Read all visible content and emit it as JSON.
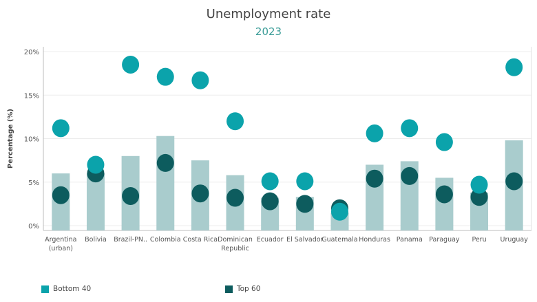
{
  "colors": {
    "bottom40": "#0ba3ab",
    "top60": "#0d5c5e",
    "bar": "#a9cccd",
    "axis": "#bcbcbc",
    "grid": "#ececec",
    "text": "#555555"
  },
  "chart_data": {
    "type": "bar",
    "title": "Unemployment rate",
    "subtitle": "2023",
    "ylabel": "Percentage (%)",
    "xlabel": "",
    "ylim": [
      0,
      20
    ],
    "yticks": [
      "0%",
      "5%",
      "10%",
      "15%",
      "20%"
    ],
    "ytick_values": [
      0,
      5,
      10,
      15,
      20
    ],
    "grid": true,
    "legend_position": "bottom",
    "categories": [
      [
        "Argentina",
        "(urban)"
      ],
      [
        "Bolivia"
      ],
      [
        "Brazil-PN.."
      ],
      [
        "Colombia"
      ],
      [
        "Costa Rica"
      ],
      [
        "Dominican",
        "Republic"
      ],
      [
        "Ecuador"
      ],
      [
        "El Salvador"
      ],
      [
        "Guatemala"
      ],
      [
        "Honduras"
      ],
      [
        "Panama"
      ],
      [
        "Paraguay"
      ],
      [
        "Peru"
      ],
      [
        "Uruguay"
      ]
    ],
    "bar_values": [
      6.0,
      6.0,
      8.0,
      10.3,
      7.5,
      5.8,
      3.2,
      3.3,
      1.5,
      7.0,
      7.4,
      5.5,
      3.8,
      9.8
    ],
    "series": [
      {
        "name": "Bottom 40",
        "values": [
          11.2,
          7.0,
          18.5,
          17.1,
          16.7,
          12.0,
          5.1,
          5.1,
          1.6,
          10.6,
          11.2,
          9.6,
          4.7,
          18.2
        ]
      },
      {
        "name": "Top 60",
        "values": [
          3.5,
          6.0,
          3.4,
          7.2,
          3.7,
          3.2,
          2.8,
          2.5,
          2.0,
          5.4,
          5.7,
          3.6,
          3.3,
          5.1
        ]
      }
    ]
  },
  "legend": {
    "bottom40": "Bottom 40",
    "top60": "Top 60"
  }
}
